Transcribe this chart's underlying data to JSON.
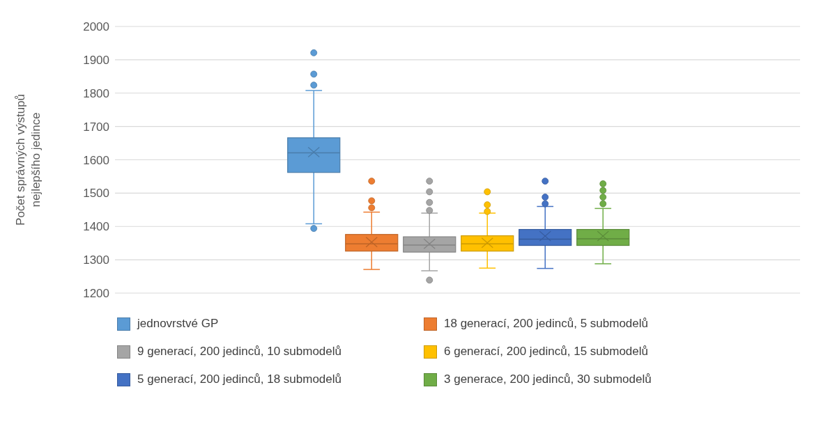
{
  "chart_data": {
    "type": "box",
    "ylabel": "Počet správných výstupů nejlepšího jedince",
    "categories": [
      null
    ],
    "ylim": [
      1200,
      2000
    ],
    "yticks": [
      1200,
      1300,
      1400,
      1500,
      1600,
      1700,
      1800,
      1900,
      2000
    ],
    "grid": "y",
    "legend": "bottom",
    "series": [
      {
        "name": "jednovrstvé GP",
        "color": "#5b9bd5",
        "boxes": [
          {
            "low": 1408,
            "q1": 1562,
            "median": 1621,
            "q3": 1666,
            "high": 1808,
            "mean": 1623,
            "outliers": [
              1394,
              1824,
              1857,
              1921
            ]
          }
        ]
      },
      {
        "name": "18 generací, 200 jedinců, 5 submodelů",
        "color": "#ed7d31",
        "boxes": [
          {
            "low": 1271,
            "q1": 1326,
            "median": 1348,
            "q3": 1376,
            "high": 1443,
            "mean": 1353,
            "outliers": [
              1456,
              1477,
              1536
            ]
          }
        ]
      },
      {
        "name": "9 generací, 200 jedinců, 10 submodelů",
        "color": "#a5a5a5",
        "boxes": [
          {
            "low": 1267,
            "q1": 1323,
            "median": 1344,
            "q3": 1369,
            "high": 1440,
            "mean": 1348,
            "outliers": [
              1239,
              1448,
              1472,
              1504,
              1536
            ]
          }
        ]
      },
      {
        "name": "6 generací, 200 jedinců, 15 submodelů",
        "color": "#ffc000",
        "boxes": [
          {
            "low": 1275,
            "q1": 1326,
            "median": 1348,
            "q3": 1372,
            "high": 1440,
            "mean": 1351,
            "outliers": [
              1445,
              1465,
              1504
            ]
          }
        ]
      },
      {
        "name": "5 generací, 200 jedinců, 18 submodelů",
        "color": "#4472c4",
        "boxes": [
          {
            "low": 1274,
            "q1": 1343,
            "median": 1362,
            "q3": 1391,
            "high": 1460,
            "mean": 1371,
            "outliers": [
              1468,
              1488,
              1536
            ]
          }
        ]
      },
      {
        "name": "3 generace, 200 jedinců, 30 submodelů",
        "color": "#70ad47",
        "boxes": [
          {
            "low": 1288,
            "q1": 1343,
            "median": 1363,
            "q3": 1391,
            "high": 1454,
            "mean": 1371,
            "outliers": [
              1468,
              1488,
              1508,
              1528
            ]
          }
        ]
      }
    ]
  }
}
